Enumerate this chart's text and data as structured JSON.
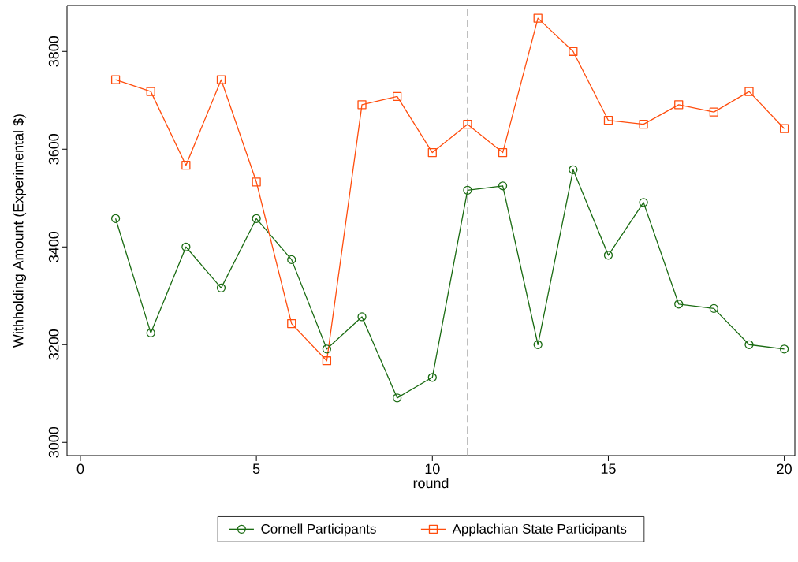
{
  "chart_data": {
    "type": "line",
    "xlabel": "round",
    "ylabel": "Withholding Amount (Experimental $)",
    "x": [
      1,
      2,
      3,
      4,
      5,
      6,
      7,
      8,
      9,
      10,
      11,
      12,
      13,
      14,
      15,
      16,
      17,
      18,
      19,
      20
    ],
    "series": [
      {
        "name": "Cornell Participants",
        "color": "#1a6b12",
        "marker": "circle",
        "values": [
          3458,
          3224,
          3400,
          3316,
          3458,
          3374,
          3191,
          3257,
          3091,
          3133,
          3516,
          3525,
          3200,
          3558,
          3383,
          3491,
          3283,
          3274,
          3200,
          3191
        ]
      },
      {
        "name": "Applachian State Participants",
        "color": "#ff4d0d",
        "marker": "square",
        "values": [
          3742,
          3718,
          3567,
          3742,
          3533,
          3243,
          3167,
          3691,
          3708,
          3593,
          3651,
          3593,
          3868,
          3800,
          3659,
          3651,
          3691,
          3676,
          3718,
          3642
        ]
      }
    ],
    "xlim": [
      -0.38,
      20.3
    ],
    "ylim": [
      2973,
      3894
    ],
    "xticks": [
      0,
      5,
      10,
      15,
      20
    ],
    "yticks": [
      3000,
      3200,
      3400,
      3600,
      3800
    ],
    "ref_lines": [
      {
        "axis": "x",
        "value": 11,
        "color": "#a0a0a0",
        "line_style": "dashed"
      }
    ],
    "grid": false,
    "legend": "bottom",
    "line_style": "solid"
  }
}
